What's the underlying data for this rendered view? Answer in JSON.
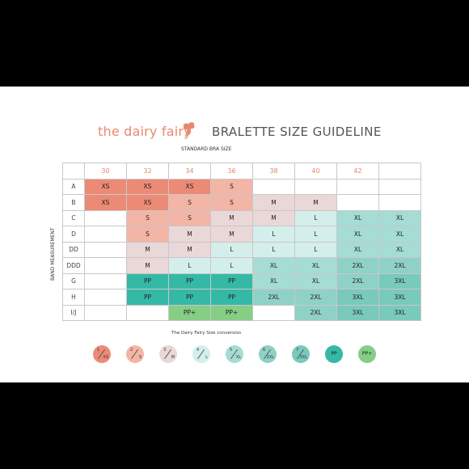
{
  "brand": "the dairy fairy",
  "title": "BRALETTE SIZE GUIDELINE",
  "subtitle": "STANDARD BRA SIZE",
  "vertical_label": "BAND MEASUREMENT",
  "columns": [
    "30",
    "32",
    "34",
    "36",
    "38",
    "40",
    "42",
    ""
  ],
  "rows": [
    {
      "band": "A",
      "cells": [
        "XS",
        "XS",
        "XS",
        "S",
        "",
        "",
        "",
        ""
      ]
    },
    {
      "band": "B",
      "cells": [
        "XS",
        "XS",
        "S",
        "S",
        "M",
        "M",
        "",
        ""
      ]
    },
    {
      "band": "C",
      "cells": [
        "",
        "S",
        "S",
        "M",
        "M",
        "L",
        "XL",
        "XL"
      ]
    },
    {
      "band": "D",
      "cells": [
        "",
        "S",
        "M",
        "M",
        "L",
        "L",
        "XL",
        "XL"
      ]
    },
    {
      "band": "DD",
      "cells": [
        "",
        "M",
        "M",
        "L",
        "L",
        "L",
        "XL",
        "XL"
      ]
    },
    {
      "band": "DDD",
      "cells": [
        "",
        "M",
        "L",
        "L",
        "XL",
        "XL",
        "2XL",
        "2XL"
      ]
    },
    {
      "band": "G",
      "cells": [
        "",
        "PP",
        "PP",
        "PP",
        "XL",
        "XL",
        "2XL",
        "3XL"
      ]
    },
    {
      "band": "H",
      "cells": [
        "",
        "PP",
        "PP",
        "PP",
        "2XL",
        "2XL",
        "3XL",
        "3XL"
      ]
    },
    {
      "band": "I/J",
      "cells": [
        "",
        "",
        "PP+",
        "PP+",
        "",
        "2XL",
        "3XL",
        "3XL"
      ]
    }
  ],
  "colors": {
    "XS": "#ec8b75",
    "S": "#f3b5a5",
    "M": "#ead7d7",
    "L": "#d4eeeb",
    "XL": "#a5dcd3",
    "2XL": "#8fd1c6",
    "3XL": "#79c9bc",
    "PP": "#35b9a6",
    "PP+": "#86cd86"
  },
  "conversion_title": "The Dairy Fairy Size conversion",
  "conversion": [
    {
      "num": "1",
      "size": "XS",
      "key": "XS"
    },
    {
      "num": "2",
      "size": "S",
      "key": "S"
    },
    {
      "num": "3",
      "size": "M",
      "key": "M"
    },
    {
      "num": "4",
      "size": "L",
      "key": "L"
    },
    {
      "num": "5",
      "size": "XL",
      "key": "XL"
    },
    {
      "num": "6",
      "size": "2XL",
      "key": "2XL"
    },
    {
      "num": "7",
      "size": "3XL",
      "key": "3XL"
    },
    {
      "num": "",
      "size": "PP",
      "key": "PP"
    },
    {
      "num": "",
      "size": "PP+",
      "key": "PP+"
    }
  ]
}
